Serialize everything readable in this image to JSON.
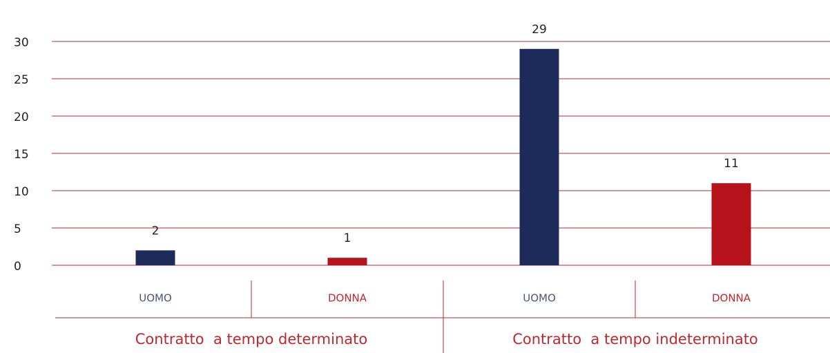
{
  "chart_data": {
    "type": "bar",
    "categories": [
      "UOMO",
      "DONNA",
      "UOMO",
      "DONNA"
    ],
    "category_colors": [
      "#4a5580",
      "#c0272d",
      "#4a5580",
      "#c0272d"
    ],
    "groups": [
      {
        "label": "Contratto  a tempo determinato",
        "span": 2
      },
      {
        "label": "Contratto  a tempo indeterminato",
        "span": 2
      }
    ],
    "values": [
      2,
      1,
      29,
      11
    ],
    "colors": [
      "#1c2b5a",
      "#b5121b",
      "#1c2b5a",
      "#b5121b"
    ],
    "ylim": [
      0,
      30
    ],
    "yticks": [
      0,
      5,
      10,
      15,
      20,
      25,
      30
    ],
    "grid": true,
    "grid_color": "#c0272d"
  }
}
